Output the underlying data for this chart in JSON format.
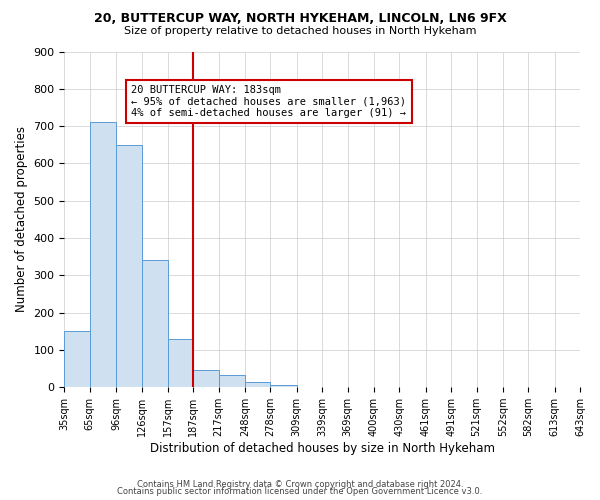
{
  "title": "20, BUTTERCUP WAY, NORTH HYKEHAM, LINCOLN, LN6 9FX",
  "subtitle": "Size of property relative to detached houses in North Hykeham",
  "xlabel": "Distribution of detached houses by size in North Hykeham",
  "ylabel": "Number of detached properties",
  "bar_values": [
    150,
    710,
    650,
    340,
    130,
    45,
    32,
    15,
    5,
    0,
    0,
    0,
    0,
    0,
    0,
    0,
    0,
    0,
    0,
    0
  ],
  "bin_edges": [
    35,
    65,
    96,
    126,
    157,
    187,
    217,
    248,
    278,
    309,
    339,
    369,
    400,
    430,
    461,
    491,
    521,
    552,
    582,
    613,
    643
  ],
  "tick_labels": [
    "35sqm",
    "65sqm",
    "96sqm",
    "126sqm",
    "157sqm",
    "187sqm",
    "217sqm",
    "248sqm",
    "278sqm",
    "309sqm",
    "339sqm",
    "369sqm",
    "400sqm",
    "430sqm",
    "461sqm",
    "491sqm",
    "521sqm",
    "552sqm",
    "582sqm",
    "613sqm",
    "643sqm"
  ],
  "bar_color": "#cfe0f0",
  "bar_edge_color": "#5b9bd5",
  "vline_x": 187,
  "vline_color": "#cc0000",
  "annotation_title": "20 BUTTERCUP WAY: 183sqm",
  "annotation_line1": "← 95% of detached houses are smaller (1,963)",
  "annotation_line2": "4% of semi-detached houses are larger (91) →",
  "annotation_box_color": "#ffffff",
  "annotation_box_edge": "#cc0000",
  "ylim": [
    0,
    900
  ],
  "yticks": [
    0,
    100,
    200,
    300,
    400,
    500,
    600,
    700,
    800,
    900
  ],
  "footer1": "Contains HM Land Registry data © Crown copyright and database right 2024.",
  "footer2": "Contains public sector information licensed under the Open Government Licence v3.0.",
  "background_color": "#ffffff",
  "grid_color": "#cccccc"
}
